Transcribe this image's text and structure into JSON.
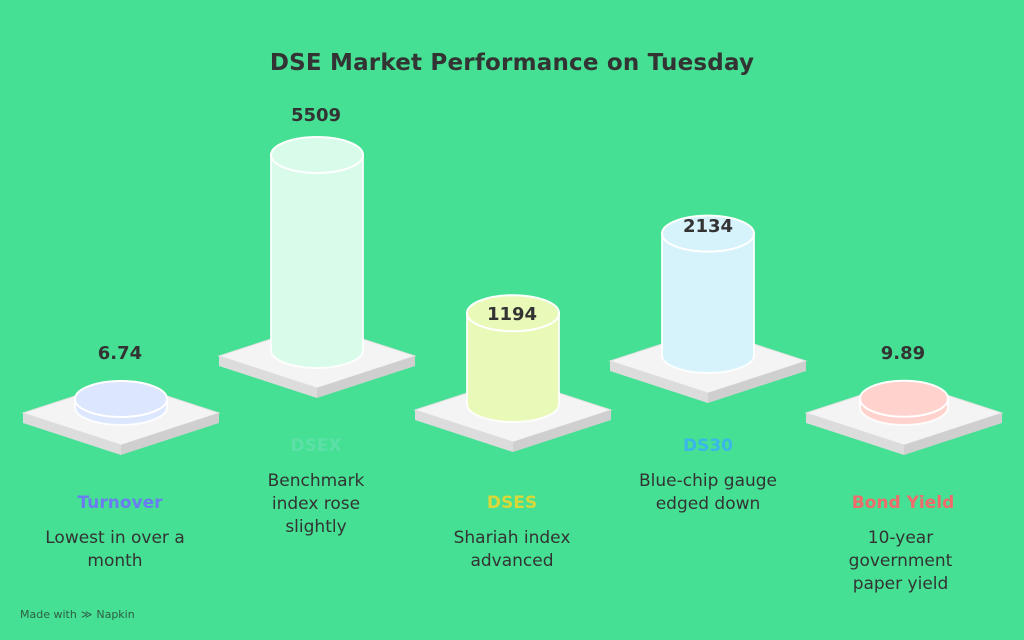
{
  "chart_data": {
    "type": "bar",
    "title": "DSE Market Performance on Tuesday",
    "categories": [
      "Turnover",
      "DSEX",
      "DSES",
      "DS30",
      "Bond Yield"
    ],
    "values": [
      6.74,
      5509,
      1194,
      2134,
      9.89
    ],
    "value_labels": [
      "6.74",
      "5509",
      "1194",
      "2134",
      "9.89"
    ],
    "descriptions": [
      "Lowest in over a month",
      "Benchmark index rose slightly",
      "Shariah index advanced",
      "Blue-chip gauge edged down",
      "10-year government paper yield"
    ],
    "colors": [
      "#6b7bf0",
      "#5de0a8",
      "#d8d83a",
      "#3ab7e8",
      "#f06b6b"
    ],
    "fill_colors": [
      "#dde6ff",
      "#d9fbe9",
      "#e8f9b8",
      "#d6f3fb",
      "#ffd2cd"
    ],
    "grid": false,
    "legend": "none"
  },
  "footer": {
    "made_with": "Made with",
    "brand": "Napkin"
  }
}
